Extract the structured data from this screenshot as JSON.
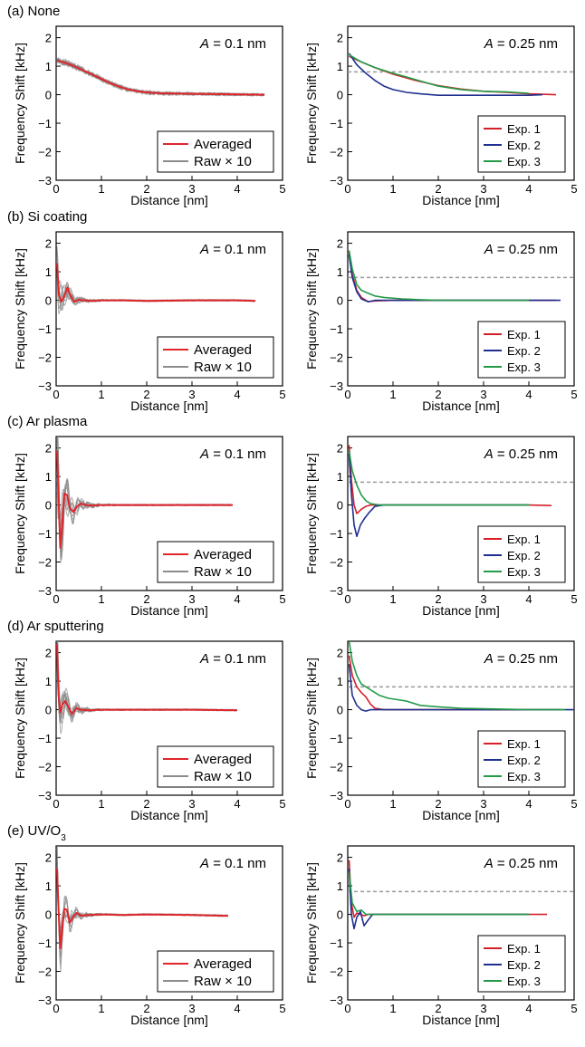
{
  "rows": [
    {
      "label": "(a) None",
      "label_sub": ""
    },
    {
      "label": "(b) Si coating",
      "label_sub": ""
    },
    {
      "label": "(c) Ar plasma",
      "label_sub": ""
    },
    {
      "label": "(d) Ar sputtering",
      "label_sub": ""
    },
    {
      "label": "(e) UV/O",
      "label_sub": "3"
    }
  ],
  "colors": {
    "averaged": "#e0262b",
    "raw": "#8c8c8c",
    "exp1": "#d42029",
    "exp2": "#1f2f8f",
    "exp3": "#239b48",
    "threshold": "#9a9a9a"
  },
  "chart_data": [
    {
      "type": "line",
      "row": 0,
      "column": "left",
      "annotation": "A = 0.1 nm",
      "xlabel": "Distance [nm]",
      "ylabel": "Frequency Shift [kHz]",
      "xlim": [
        0,
        5
      ],
      "ylim": [
        -3,
        2.4
      ],
      "xticks": [
        0,
        1,
        2,
        3,
        4,
        5
      ],
      "yticks": [
        -3,
        -2,
        -1,
        0,
        1,
        2
      ],
      "legend": [
        "Averaged",
        "Raw × 10"
      ],
      "series": [
        {
          "name": "Averaged",
          "x": [
            0.02,
            0.2,
            0.4,
            0.6,
            0.8,
            1.0,
            1.2,
            1.4,
            1.6,
            1.8,
            2.0,
            2.3,
            2.6,
            3.0,
            3.5,
            4.0,
            4.6
          ],
          "y": [
            1.2,
            1.12,
            1.0,
            0.85,
            0.7,
            0.55,
            0.4,
            0.28,
            0.18,
            0.12,
            0.08,
            0.05,
            0.04,
            0.03,
            0.02,
            0.01,
            0.0
          ]
        },
        {
          "name": "Raw × 10",
          "shape": "smooth",
          "xmax": 4.6,
          "spread": 0.15
        }
      ]
    },
    {
      "type": "line",
      "row": 0,
      "column": "right",
      "annotation": "A = 0.25 nm",
      "xlabel": "Distance [nm]",
      "ylabel": "Frequency Shift [kHz]",
      "xlim": [
        0,
        5
      ],
      "ylim": [
        -3,
        2.4
      ],
      "xticks": [
        0,
        1,
        2,
        3,
        4,
        5
      ],
      "yticks": [
        -3,
        -2,
        -1,
        0,
        1,
        2
      ],
      "threshold": 0.8,
      "legend": [
        "Exp. 1",
        "Exp. 2",
        "Exp. 3"
      ],
      "series": [
        {
          "name": "Exp. 1",
          "x": [
            0.03,
            0.3,
            0.6,
            1.0,
            1.5,
            2.0,
            2.5,
            3.0,
            3.5,
            4.0,
            4.6
          ],
          "y": [
            1.35,
            1.15,
            0.95,
            0.72,
            0.5,
            0.32,
            0.2,
            0.12,
            0.08,
            0.03,
            0.0
          ]
        },
        {
          "name": "Exp. 2",
          "x": [
            0.03,
            0.2,
            0.4,
            0.6,
            0.8,
            1.0,
            1.3,
            1.6,
            2.0,
            2.5,
            3.0,
            3.5,
            4.0,
            4.3
          ],
          "y": [
            1.45,
            1.05,
            0.75,
            0.5,
            0.3,
            0.18,
            0.08,
            0.03,
            -0.02,
            -0.02,
            -0.02,
            -0.02,
            -0.02,
            0.0
          ]
        },
        {
          "name": "Exp. 3",
          "x": [
            0.03,
            0.3,
            0.6,
            1.0,
            1.3,
            1.6,
            2.0,
            2.5,
            3.0,
            3.5,
            4.0
          ],
          "y": [
            1.4,
            1.15,
            0.95,
            0.75,
            0.62,
            0.48,
            0.3,
            0.18,
            0.12,
            0.1,
            0.05
          ]
        }
      ]
    },
    {
      "type": "line",
      "row": 1,
      "column": "left",
      "annotation": "A = 0.1 nm",
      "xlabel": "Distance [nm]",
      "ylabel": "Frequency Shift [kHz]",
      "xlim": [
        0,
        5
      ],
      "ylim": [
        -3,
        2.4
      ],
      "xticks": [
        0,
        1,
        2,
        3,
        4,
        5
      ],
      "yticks": [
        -3,
        -2,
        -1,
        0,
        1,
        2
      ],
      "legend": [
        "Averaged",
        "Raw × 10"
      ],
      "series": [
        {
          "name": "Averaged",
          "x": [
            0.02,
            0.06,
            0.12,
            0.18,
            0.25,
            0.32,
            0.4,
            0.5,
            0.6,
            0.8,
            1.0,
            1.5,
            2.0,
            3.0,
            4.0,
            4.4
          ],
          "y": [
            1.3,
            0.2,
            -0.05,
            0.15,
            0.45,
            0.15,
            -0.05,
            0.02,
            0.0,
            -0.02,
            0.0,
            0.0,
            -0.02,
            0.0,
            0.0,
            -0.02
          ]
        },
        {
          "name": "Raw × 10",
          "shape": "osc",
          "xmax": 4.4,
          "spread": 0.6
        }
      ]
    },
    {
      "type": "line",
      "row": 1,
      "column": "right",
      "annotation": "A = 0.25 nm",
      "xlabel": "Distance [nm]",
      "ylabel": "Frequency Shift [kHz]",
      "xlim": [
        0,
        5
      ],
      "ylim": [
        -3,
        2.4
      ],
      "xticks": [
        0,
        1,
        2,
        3,
        4,
        5
      ],
      "yticks": [
        -3,
        -2,
        -1,
        0,
        1,
        2
      ],
      "threshold": 0.8,
      "legend": [
        "Exp. 1",
        "Exp. 2",
        "Exp. 3"
      ],
      "series": [
        {
          "name": "Exp. 1",
          "x": [
            0.03,
            0.1,
            0.2,
            0.3,
            0.45,
            0.6,
            1.0,
            2.0,
            3.0,
            4.0,
            4.6
          ],
          "y": [
            1.7,
            0.9,
            0.35,
            0.1,
            -0.05,
            -0.02,
            0.0,
            0.0,
            0.0,
            0.0,
            0.0
          ]
        },
        {
          "name": "Exp. 2",
          "x": [
            0.03,
            0.1,
            0.2,
            0.3,
            0.45,
            0.6,
            1.0,
            2.0,
            3.0,
            4.0,
            4.7
          ],
          "y": [
            1.6,
            0.8,
            0.3,
            0.05,
            -0.05,
            0.0,
            0.0,
            0.0,
            0.0,
            0.0,
            0.0
          ]
        },
        {
          "name": "Exp. 3",
          "x": [
            0.03,
            0.1,
            0.2,
            0.3,
            0.4,
            0.6,
            0.8,
            1.2,
            1.6,
            2.0,
            3.0,
            4.0
          ],
          "y": [
            1.75,
            1.1,
            0.55,
            0.35,
            0.28,
            0.15,
            0.1,
            0.05,
            0.02,
            0.0,
            0.0,
            0.0
          ]
        }
      ]
    },
    {
      "type": "line",
      "row": 2,
      "column": "left",
      "annotation": "A = 0.1 nm",
      "xlabel": "Distance [nm]",
      "ylabel": "Frequency Shift [kHz]",
      "xlim": [
        0,
        5
      ],
      "ylim": [
        -3,
        2.4
      ],
      "xticks": [
        0,
        1,
        2,
        3,
        4,
        5
      ],
      "yticks": [
        -3,
        -2,
        -1,
        0,
        1,
        2
      ],
      "legend": [
        "Averaged",
        "Raw × 10"
      ],
      "series": [
        {
          "name": "Averaged",
          "x": [
            0.02,
            0.05,
            0.09,
            0.13,
            0.18,
            0.24,
            0.3,
            0.38,
            0.46,
            0.55,
            0.65,
            0.8,
            1.0,
            1.5,
            2.0,
            3.0,
            3.9
          ],
          "y": [
            1.9,
            0.5,
            -1.5,
            -0.8,
            0.4,
            0.35,
            -0.1,
            -0.25,
            -0.05,
            0.05,
            0.0,
            -0.02,
            0.0,
            0.0,
            0.0,
            0.0,
            0.0
          ]
        },
        {
          "name": "Raw × 10",
          "shape": "osc",
          "xmax": 3.9,
          "spread": 1.2
        }
      ]
    },
    {
      "type": "line",
      "row": 2,
      "column": "right",
      "annotation": "A = 0.25 nm",
      "xlabel": "Distance [nm]",
      "ylabel": "Frequency Shift [kHz]",
      "xlim": [
        0,
        5
      ],
      "ylim": [
        -3,
        2.4
      ],
      "xticks": [
        0,
        1,
        2,
        3,
        4,
        5
      ],
      "yticks": [
        -3,
        -2,
        -1,
        0,
        1,
        2
      ],
      "threshold": 0.8,
      "legend": [
        "Exp. 1",
        "Exp. 2",
        "Exp. 3"
      ],
      "series": [
        {
          "name": "Exp. 1",
          "x": [
            0.03,
            0.08,
            0.14,
            0.2,
            0.3,
            0.4,
            0.5,
            0.7,
            1.0,
            2.0,
            3.0,
            4.0,
            4.5
          ],
          "y": [
            2.1,
            0.9,
            0.0,
            -0.3,
            -0.15,
            -0.05,
            0.0,
            0.0,
            0.0,
            0.0,
            0.0,
            0.0,
            -0.02
          ]
        },
        {
          "name": "Exp. 2",
          "x": [
            0.03,
            0.08,
            0.14,
            0.2,
            0.28,
            0.38,
            0.48,
            0.6,
            0.8,
            1.0,
            2.0,
            3.0,
            4.0
          ],
          "y": [
            1.8,
            0.4,
            -0.7,
            -1.1,
            -0.7,
            -0.45,
            -0.25,
            -0.05,
            0.0,
            0.0,
            0.0,
            0.0,
            0.0
          ]
        },
        {
          "name": "Exp. 3",
          "x": [
            0.03,
            0.1,
            0.2,
            0.3,
            0.4,
            0.5,
            0.7,
            1.0,
            2.0,
            3.0,
            4.0
          ],
          "y": [
            1.9,
            1.2,
            0.7,
            0.35,
            0.15,
            0.05,
            0.0,
            0.0,
            0.0,
            0.0,
            0.0
          ]
        }
      ]
    },
    {
      "type": "line",
      "row": 3,
      "column": "left",
      "annotation": "A = 0.1 nm",
      "xlabel": "Distance [nm]",
      "ylabel": "Frequency Shift [kHz]",
      "xlim": [
        0,
        5
      ],
      "ylim": [
        -3,
        2.4
      ],
      "xticks": [
        0,
        1,
        2,
        3,
        4,
        5
      ],
      "yticks": [
        -3,
        -2,
        -1,
        0,
        1,
        2
      ],
      "legend": [
        "Averaged",
        "Raw × 10"
      ],
      "series": [
        {
          "name": "Averaged",
          "x": [
            0.02,
            0.05,
            0.09,
            0.14,
            0.2,
            0.27,
            0.35,
            0.45,
            0.55,
            0.7,
            1.0,
            1.5,
            2.0,
            3.0,
            4.0
          ],
          "y": [
            2.3,
            0.6,
            -0.1,
            0.2,
            0.3,
            0.1,
            -0.15,
            0.05,
            0.0,
            -0.02,
            0.0,
            0.0,
            0.0,
            0.0,
            -0.02
          ]
        },
        {
          "name": "Raw × 10",
          "shape": "osc",
          "xmax": 4.0,
          "spread": 0.9
        }
      ]
    },
    {
      "type": "line",
      "row": 3,
      "column": "right",
      "annotation": "A = 0.25 nm",
      "xlabel": "Distance [nm]",
      "ylabel": "Frequency Shift [kHz]",
      "xlim": [
        0,
        5
      ],
      "ylim": [
        -3,
        2.4
      ],
      "xticks": [
        0,
        1,
        2,
        3,
        4,
        5
      ],
      "yticks": [
        -3,
        -2,
        -1,
        0,
        1,
        2
      ],
      "threshold": 0.8,
      "legend": [
        "Exp. 1",
        "Exp. 2",
        "Exp. 3"
      ],
      "series": [
        {
          "name": "Exp. 1",
          "x": [
            0.03,
            0.1,
            0.2,
            0.3,
            0.4,
            0.5,
            0.6,
            0.8,
            1.0,
            2.0,
            3.0,
            4.0,
            4.7
          ],
          "y": [
            1.9,
            1.2,
            0.8,
            0.6,
            0.45,
            0.2,
            0.05,
            0.0,
            0.0,
            0.0,
            0.0,
            0.0,
            0.0
          ]
        },
        {
          "name": "Exp. 2",
          "x": [
            0.03,
            0.1,
            0.2,
            0.3,
            0.4,
            0.5,
            0.7,
            1.0,
            2.0,
            3.0,
            4.0,
            5.0
          ],
          "y": [
            1.6,
            0.5,
            0.15,
            0.0,
            -0.05,
            0.0,
            0.0,
            0.0,
            0.0,
            0.0,
            0.0,
            0.0
          ]
        },
        {
          "name": "Exp. 3",
          "x": [
            0.03,
            0.1,
            0.2,
            0.3,
            0.5,
            0.7,
            0.9,
            1.1,
            1.3,
            1.6,
            2.0,
            2.5,
            3.0,
            4.0,
            4.8
          ],
          "y": [
            2.4,
            1.7,
            1.2,
            0.9,
            0.7,
            0.5,
            0.4,
            0.35,
            0.3,
            0.15,
            0.1,
            0.05,
            0.03,
            0.0,
            0.0
          ]
        }
      ]
    },
    {
      "type": "line",
      "row": 4,
      "column": "left",
      "annotation": "A = 0.1 nm",
      "xlabel": "Distance [nm]",
      "ylabel": "Frequency Shift [kHz]",
      "xlim": [
        0,
        5
      ],
      "ylim": [
        -3,
        2.4
      ],
      "xticks": [
        0,
        1,
        2,
        3,
        4,
        5
      ],
      "yticks": [
        -3,
        -2,
        -1,
        0,
        1,
        2
      ],
      "legend": [
        "Averaged",
        "Raw × 10"
      ],
      "series": [
        {
          "name": "Averaged",
          "x": [
            0.02,
            0.05,
            0.09,
            0.13,
            0.18,
            0.24,
            0.3,
            0.37,
            0.45,
            0.55,
            0.7,
            1.0,
            1.5,
            2.0,
            3.0,
            3.8
          ],
          "y": [
            1.6,
            0.3,
            -1.2,
            -0.6,
            0.2,
            0.15,
            -0.3,
            -0.1,
            0.05,
            -0.05,
            -0.02,
            0.0,
            -0.02,
            0.0,
            -0.02,
            -0.05
          ]
        },
        {
          "name": "Raw × 10",
          "shape": "osc",
          "xmax": 3.8,
          "spread": 0.8
        }
      ]
    },
    {
      "type": "line",
      "row": 4,
      "column": "right",
      "annotation": "A = 0.25 nm",
      "xlabel": "Distance [nm]",
      "ylabel": "Frequency Shift [kHz]",
      "xlim": [
        0,
        5
      ],
      "ylim": [
        -3,
        2.4
      ],
      "xticks": [
        0,
        1,
        2,
        3,
        4,
        5
      ],
      "yticks": [
        -3,
        -2,
        -1,
        0,
        1,
        2
      ],
      "threshold": 0.8,
      "legend": [
        "Exp. 1",
        "Exp. 2",
        "Exp. 3"
      ],
      "series": [
        {
          "name": "Exp. 1",
          "x": [
            0.03,
            0.08,
            0.14,
            0.2,
            0.28,
            0.36,
            0.45,
            0.6,
            0.8,
            1.0,
            2.0,
            3.0,
            4.0,
            4.4
          ],
          "y": [
            1.9,
            0.4,
            -0.1,
            0.05,
            0.0,
            -0.05,
            0.0,
            0.0,
            0.0,
            0.0,
            0.0,
            0.0,
            0.0,
            0.0
          ]
        },
        {
          "name": "Exp. 2",
          "x": [
            0.03,
            0.08,
            0.14,
            0.2,
            0.28,
            0.36,
            0.45,
            0.55,
            0.7,
            1.0,
            2.0,
            3.0,
            4.0
          ],
          "y": [
            1.6,
            0.0,
            -0.5,
            -0.1,
            0.1,
            -0.4,
            -0.2,
            0.0,
            0.0,
            0.0,
            0.0,
            0.0,
            0.0
          ]
        },
        {
          "name": "Exp. 3",
          "x": [
            0.03,
            0.1,
            0.2,
            0.3,
            0.4,
            0.6,
            1.0,
            2.0,
            3.0,
            4.0
          ],
          "y": [
            1.5,
            0.4,
            0.1,
            0.15,
            0.0,
            0.0,
            0.0,
            0.0,
            0.0,
            0.0
          ]
        }
      ]
    }
  ]
}
